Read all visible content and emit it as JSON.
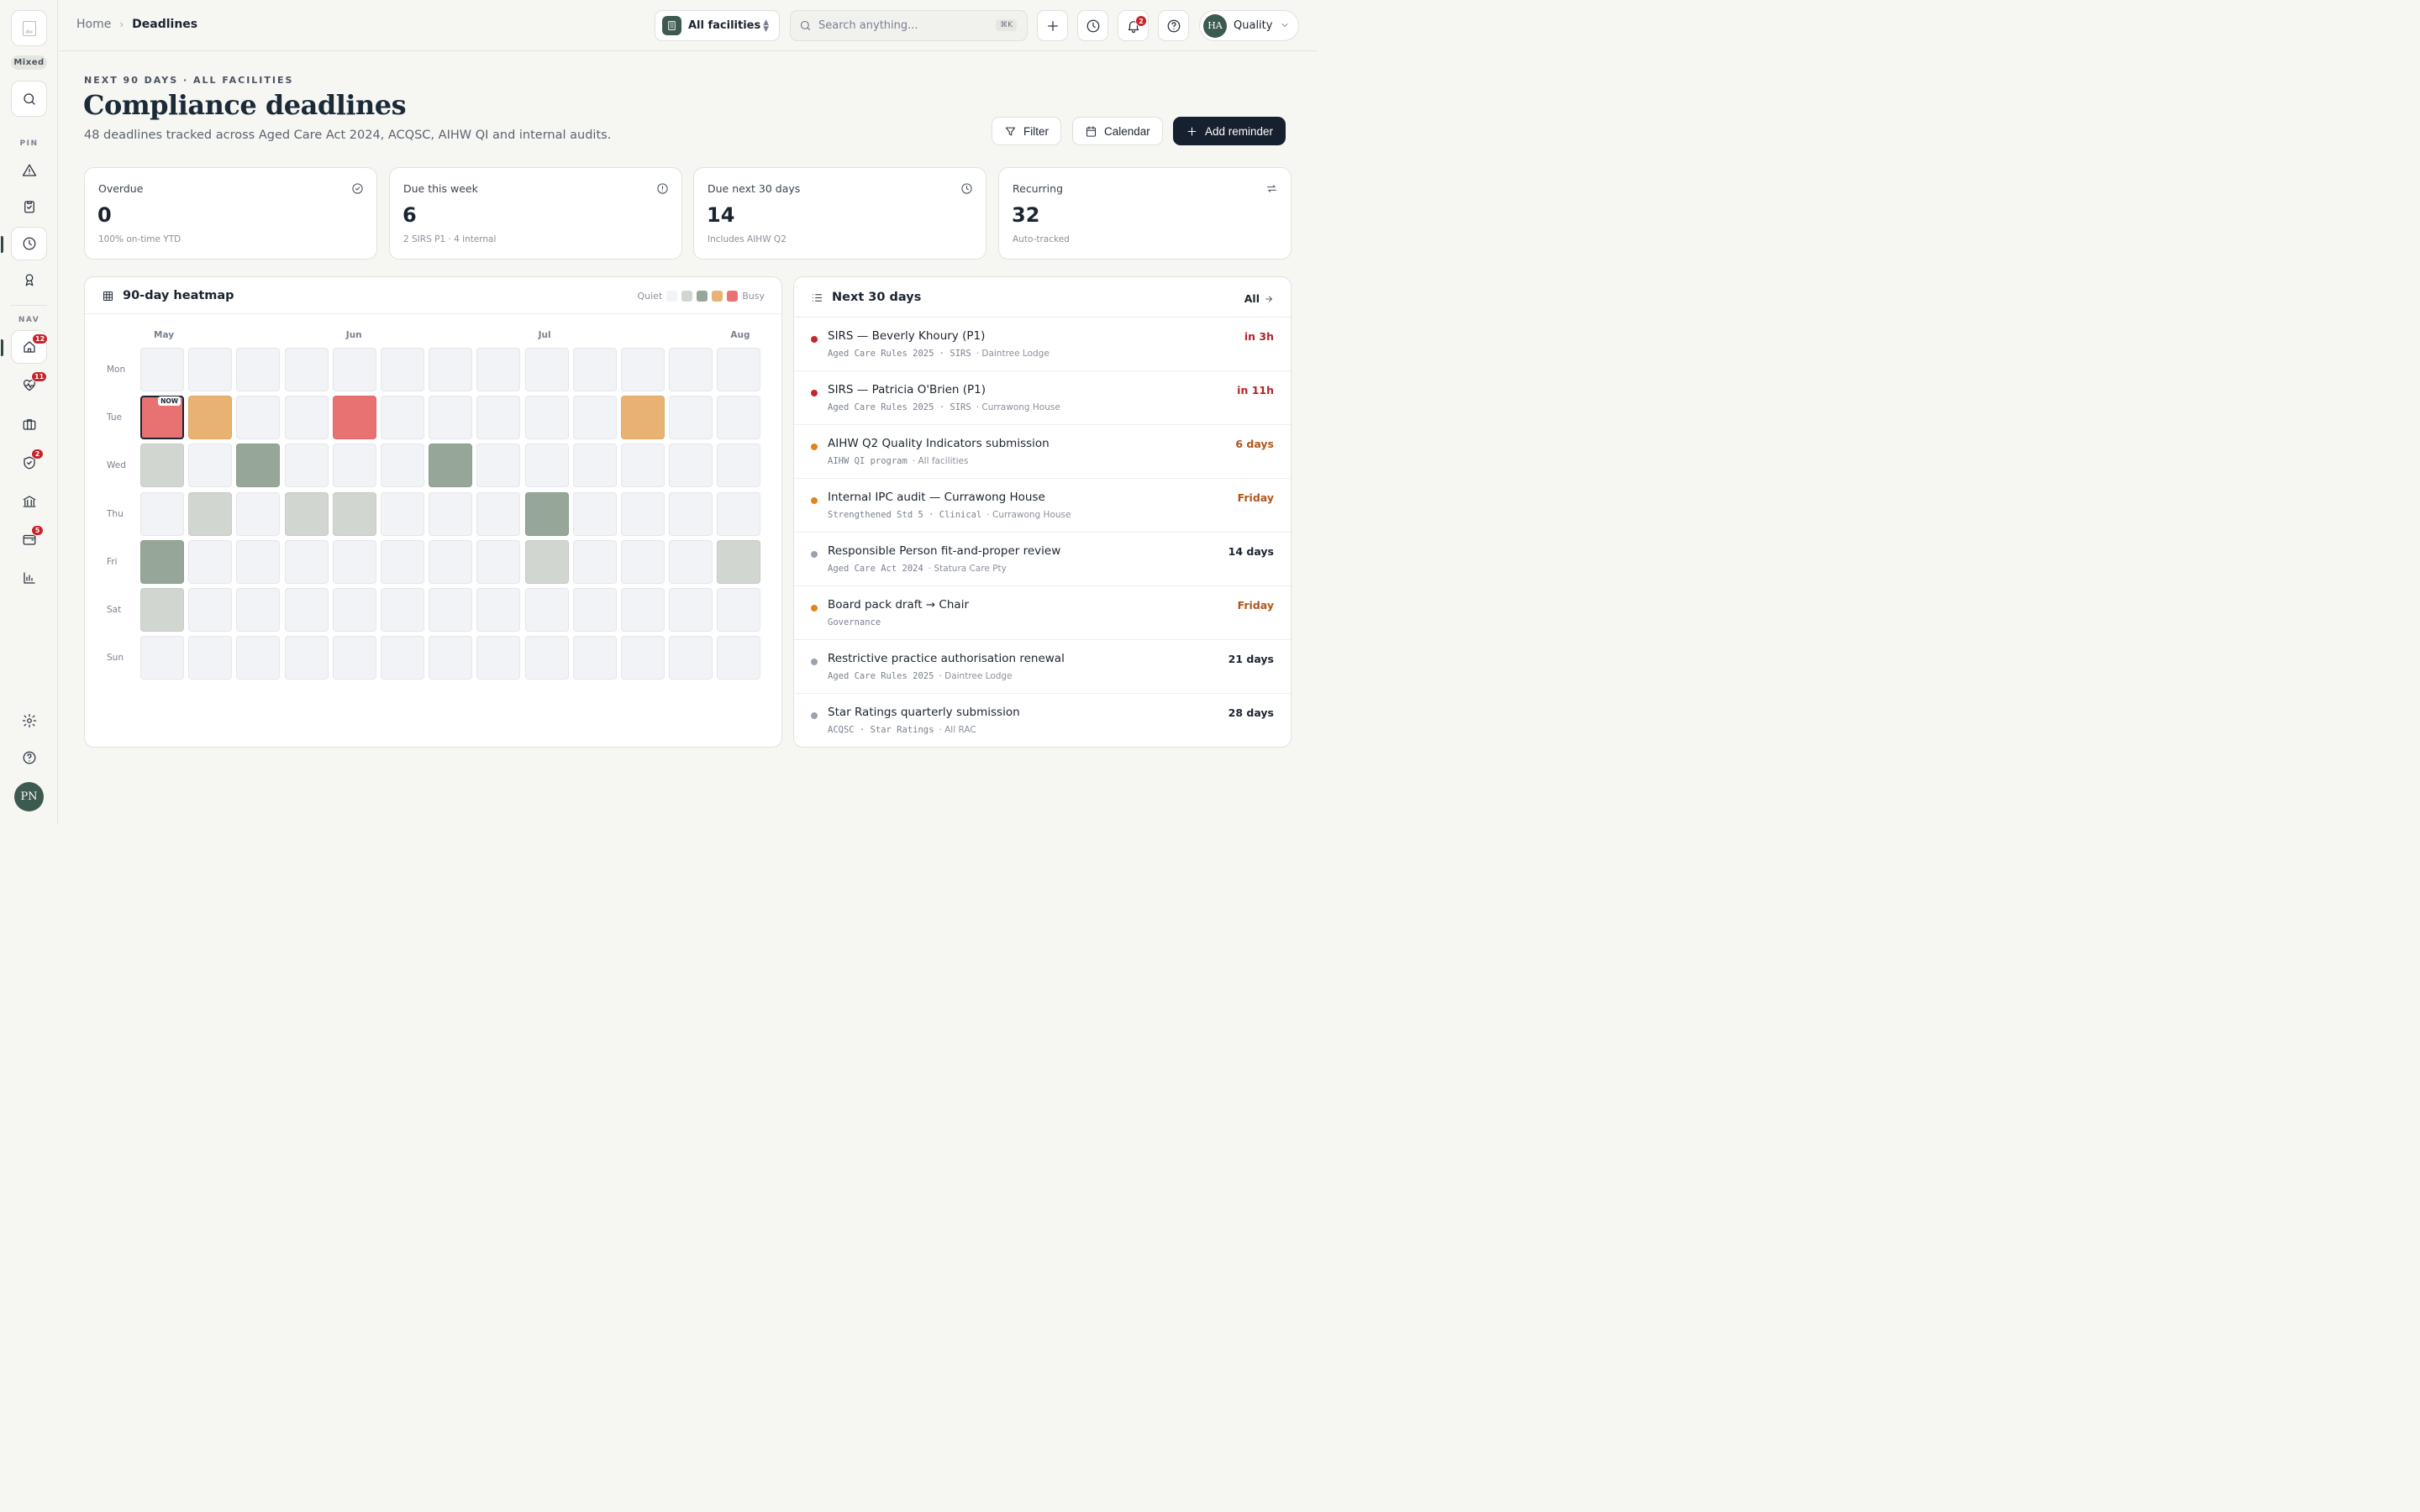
{
  "rail": {
    "mixed_label": "Mixed",
    "pin_label": "PIN",
    "nav_label": "NAV",
    "nav_badges": {
      "home": "12",
      "health": "11",
      "shield": "2",
      "wallet": "5"
    },
    "avatar_initials": "PN"
  },
  "topbar": {
    "breadcrumb_home": "Home",
    "breadcrumb_current": "Deadlines",
    "facility_select": "All facilities",
    "search_placeholder": "Search anything...",
    "search_shortcut": "⌘K",
    "notifications_count": "2",
    "user_initials": "HA",
    "user_role": "Quality"
  },
  "header": {
    "eyebrow": "NEXT 90 DAYS · ALL FACILITIES",
    "title": "Compliance deadlines",
    "subtitle": "48 deadlines tracked across Aged Care Act 2024, ACQSC, AIHW QI and internal audits.",
    "filter_label": "Filter",
    "calendar_label": "Calendar",
    "add_label": "Add reminder"
  },
  "stats": [
    {
      "label": "Overdue",
      "value": "0",
      "note": "100% on-time YTD",
      "icon": "check-circle-icon"
    },
    {
      "label": "Due this week",
      "value": "6",
      "note": "2 SIRS P1 · 4 internal",
      "icon": "alert-circle-icon"
    },
    {
      "label": "Due next 30 days",
      "value": "14",
      "note": "Includes AIHW Q2",
      "icon": "clock-icon"
    },
    {
      "label": "Recurring",
      "value": "32",
      "note": "Auto-tracked",
      "icon": "repeat-icon"
    }
  ],
  "heatmap": {
    "title": "90-day heatmap",
    "legend_low": "Quiet",
    "legend_high": "Busy",
    "legend_colors": [
      "#f1f3f6",
      "#d1d7d0",
      "#96a699",
      "#e8b372",
      "#e87272"
    ],
    "months": [
      {
        "label": "May",
        "col": 0
      },
      {
        "label": "Jun",
        "col": 4
      },
      {
        "label": "Jul",
        "col": 8
      },
      {
        "label": "Aug",
        "col": 12
      }
    ],
    "days": [
      "Mon",
      "Tue",
      "Wed",
      "Thu",
      "Fri",
      "Sat",
      "Sun"
    ],
    "now_label": "NOW",
    "now_cell": {
      "row": 1,
      "col": 0
    },
    "levels": [
      [
        0,
        0,
        0,
        0,
        0,
        0,
        0,
        0,
        0,
        0,
        0,
        0,
        0
      ],
      [
        4,
        3,
        0,
        0,
        4,
        0,
        0,
        0,
        0,
        0,
        3,
        0,
        0
      ],
      [
        1,
        0,
        2,
        0,
        0,
        0,
        2,
        0,
        0,
        0,
        0,
        0,
        0
      ],
      [
        0,
        1,
        0,
        1,
        1,
        0,
        0,
        0,
        2,
        0,
        0,
        0,
        0
      ],
      [
        2,
        0,
        0,
        0,
        0,
        0,
        0,
        0,
        1,
        0,
        0,
        0,
        1
      ],
      [
        1,
        0,
        0,
        0,
        0,
        0,
        0,
        0,
        0,
        0,
        0,
        0,
        0
      ],
      [
        0,
        0,
        0,
        0,
        0,
        0,
        0,
        0,
        0,
        0,
        0,
        0,
        0
      ]
    ]
  },
  "upcoming": {
    "title": "Next 30 days",
    "all_label": "All",
    "items": [
      {
        "title": "SIRS — Beverly Khoury (P1)",
        "meta_mono": "Aged Care Rules 2025 · SIRS",
        "meta_place": "· Daintree Lodge",
        "due": "in 3h",
        "dot": "#c8222a",
        "due_color": "#b4232a"
      },
      {
        "title": "SIRS — Patricia O'Brien (P1)",
        "meta_mono": "Aged Care Rules 2025 · SIRS",
        "meta_place": "· Currawong House",
        "due": "in 11h",
        "dot": "#c8222a",
        "due_color": "#b4232a"
      },
      {
        "title": "AIHW Q2 Quality Indicators submission",
        "meta_mono": "AIHW QI program",
        "meta_place": "· All facilities",
        "due": "6 days",
        "dot": "#e0841f",
        "due_color": "#b0561a"
      },
      {
        "title": "Internal IPC audit — Currawong House",
        "meta_mono": "Strengthened Std 5 · Clinical",
        "meta_place": "· Currawong House",
        "due": "Friday",
        "dot": "#e0841f",
        "due_color": "#b0561a"
      },
      {
        "title": "Responsible Person fit-and-proper review",
        "meta_mono": "Aged Care Act 2024",
        "meta_place": "· Statura Care Pty",
        "due": "14 days",
        "dot": "#9aa3af",
        "due_color": "#1c2430"
      },
      {
        "title": "Board pack draft → Chair",
        "meta_mono": "Governance",
        "meta_place": "",
        "due": "Friday",
        "dot": "#e0841f",
        "due_color": "#b0561a"
      },
      {
        "title": "Restrictive practice authorisation renewal",
        "meta_mono": "Aged Care Rules 2025",
        "meta_place": "· Daintree Lodge",
        "due": "21 days",
        "dot": "#9aa3af",
        "due_color": "#1c2430"
      },
      {
        "title": "Star Ratings quarterly submission",
        "meta_mono": "ACQSC · Star Ratings",
        "meta_place": "· All RAC",
        "due": "28 days",
        "dot": "#9aa3af",
        "due_color": "#1c2430"
      }
    ]
  }
}
